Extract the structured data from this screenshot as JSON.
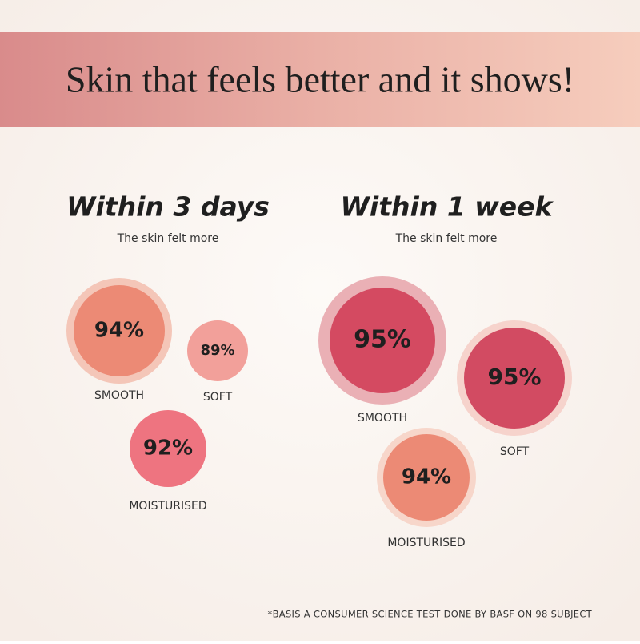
{
  "title": "Skin that feels better and it shows!",
  "groups": [
    {
      "heading": "Within 3 days",
      "subtitle": "The skin felt more",
      "items": [
        {
          "value": "94%",
          "label": "SMOOTH"
        },
        {
          "value": "89%",
          "label": "SOFT"
        },
        {
          "value": "92%",
          "label": "MOISTURISED"
        }
      ]
    },
    {
      "heading": "Within 1 week",
      "subtitle": "The skin felt more",
      "items": [
        {
          "value": "95%",
          "label": "SMOOTH"
        },
        {
          "value": "95%",
          "label": "SOFT"
        },
        {
          "value": "94%",
          "label": "MOISTURISED"
        }
      ]
    }
  ],
  "footnote": "*BASIS A CONSUMER SCIENCE TEST DONE BY BASF ON 98 SUBJECT"
}
